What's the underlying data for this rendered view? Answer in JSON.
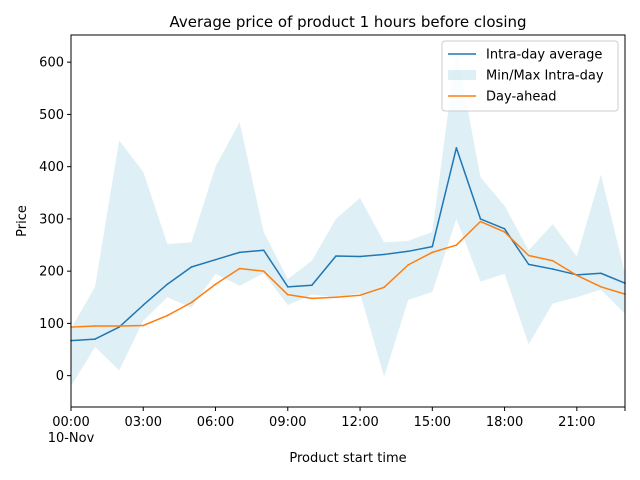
{
  "chart_data": {
    "type": "line",
    "title": "Average price of product 1 hours before closing",
    "xlabel": "Product start time",
    "ylabel": "Price",
    "x_hours": [
      0,
      1,
      2,
      3,
      4,
      5,
      6,
      7,
      8,
      9,
      10,
      11,
      12,
      13,
      14,
      15,
      16,
      17,
      18,
      19,
      20,
      21,
      22,
      23
    ],
    "xlim": [
      0,
      23
    ],
    "ylim": [
      -60,
      652
    ],
    "x_ticks": [
      {
        "hour": 0,
        "label": "00:00",
        "sublabel": "10-Nov"
      },
      {
        "hour": 3,
        "label": "03:00"
      },
      {
        "hour": 6,
        "label": "06:00"
      },
      {
        "hour": 9,
        "label": "09:00"
      },
      {
        "hour": 12,
        "label": "12:00"
      },
      {
        "hour": 15,
        "label": "15:00"
      },
      {
        "hour": 18,
        "label": "18:00"
      },
      {
        "hour": 21,
        "label": "21:00"
      },
      {
        "hour": 23,
        "label": ""
      }
    ],
    "y_ticks": [
      0,
      100,
      200,
      300,
      400,
      500,
      600
    ],
    "legend_position": "top-right",
    "series": [
      {
        "name": "Intra-day average",
        "kind": "line",
        "color": "#1f77b4",
        "values": [
          67,
          70,
          93,
          135,
          175,
          208,
          222,
          236,
          240,
          170,
          173,
          229,
          228,
          232,
          238,
          247,
          436,
          300,
          281,
          213,
          204,
          193,
          196,
          177
        ]
      },
      {
        "name": "Min/Max Intra-day",
        "kind": "band",
        "color": "#add8e6",
        "lower": [
          -20,
          55,
          10,
          105,
          150,
          130,
          195,
          172,
          196,
          135,
          155,
          150,
          158,
          -2,
          145,
          160,
          300,
          180,
          195,
          60,
          138,
          150,
          165,
          118
        ],
        "upper": [
          90,
          170,
          450,
          390,
          252,
          255,
          400,
          485,
          275,
          185,
          220,
          300,
          340,
          255,
          258,
          275,
          625,
          380,
          325,
          240,
          290,
          228,
          385,
          195
        ]
      },
      {
        "name": "Day-ahead",
        "kind": "line",
        "color": "#ff7f0e",
        "values": [
          93,
          95,
          95,
          96,
          115,
          140,
          175,
          205,
          200,
          155,
          148,
          150,
          154,
          169,
          212,
          236,
          250,
          295,
          275,
          230,
          220,
          192,
          170,
          156
        ]
      }
    ]
  }
}
